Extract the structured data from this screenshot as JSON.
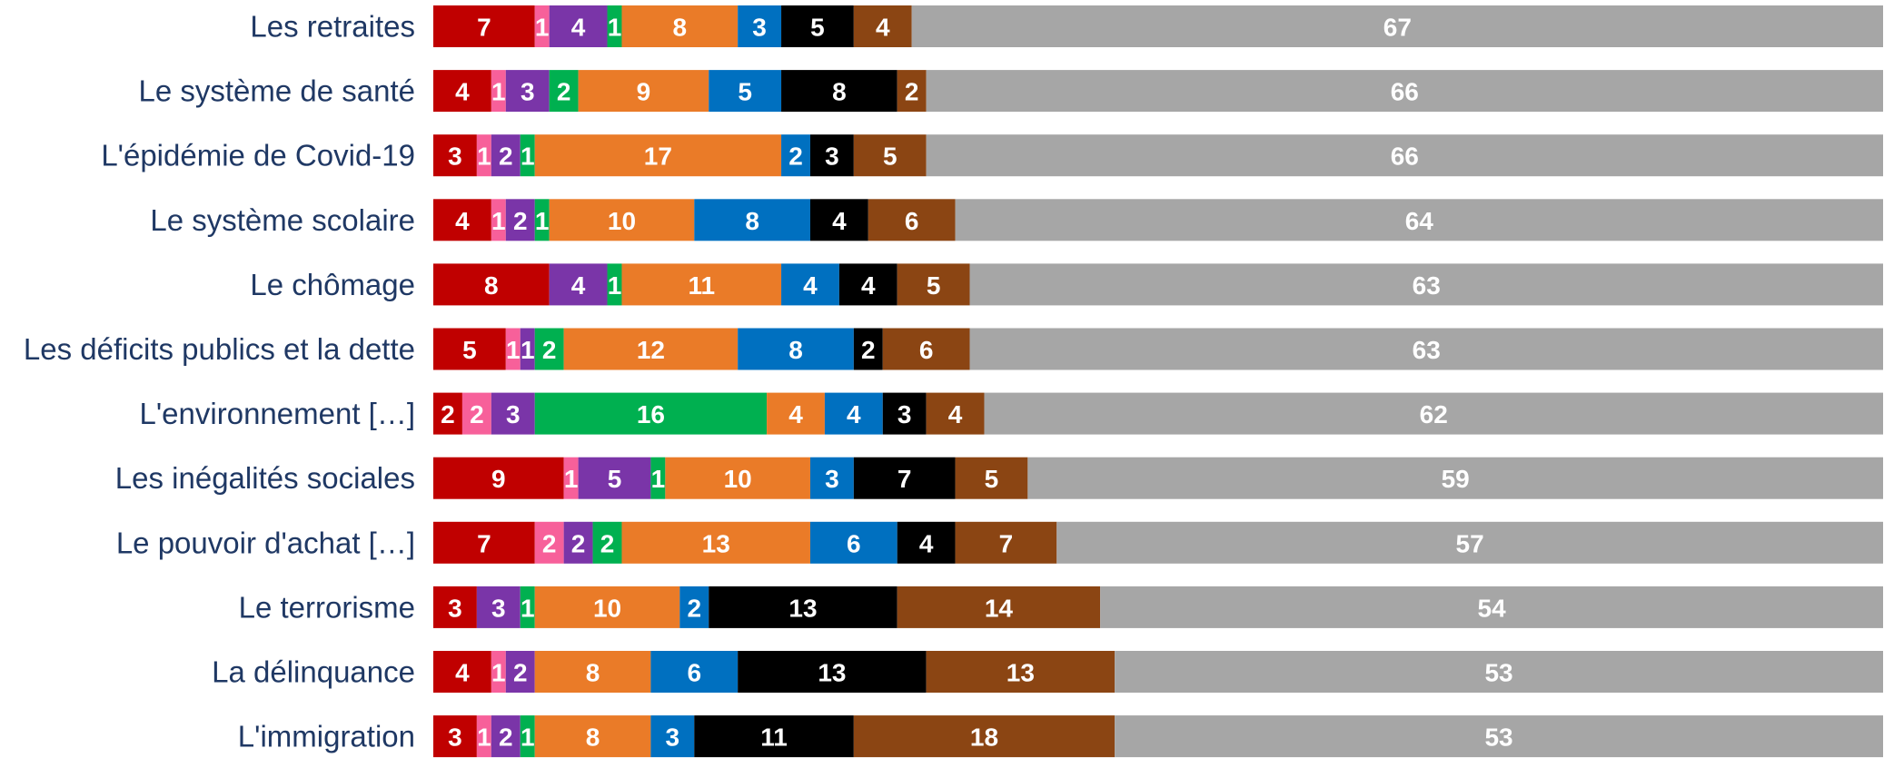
{
  "chart_data": {
    "type": "stacked-bar-horizontal",
    "categories": [
      "Les retraites",
      "Le système de santé",
      "L'épidémie de Covid-19",
      "Le système scolaire",
      "Le chômage",
      "Les déficits publics et la dette",
      "L'environnement […]",
      "Les inégalités sociales",
      "Le pouvoir d'achat […]",
      "Le terrorisme",
      "La délinquance",
      "L'immigration"
    ],
    "series": [
      {
        "color": "#c00000",
        "values": [
          7,
          4,
          3,
          4,
          8,
          5,
          2,
          9,
          7,
          3,
          4,
          3
        ]
      },
      {
        "color": "#f7609a",
        "values": [
          1,
          1,
          1,
          1,
          null,
          1,
          2,
          1,
          2,
          null,
          1,
          1
        ]
      },
      {
        "color": "#7a35a8",
        "values": [
          4,
          3,
          2,
          2,
          4,
          1,
          3,
          5,
          2,
          3,
          2,
          2
        ]
      },
      {
        "color": "#00b050",
        "values": [
          1,
          2,
          1,
          1,
          1,
          2,
          16,
          1,
          2,
          1,
          null,
          1
        ]
      },
      {
        "color": "#ea7b28",
        "values": [
          8,
          9,
          17,
          10,
          11,
          12,
          4,
          10,
          13,
          10,
          8,
          8
        ]
      },
      {
        "color": "#0070c0",
        "values": [
          3,
          5,
          2,
          8,
          4,
          8,
          4,
          3,
          6,
          2,
          6,
          3
        ]
      },
      {
        "color": "#000000",
        "values": [
          5,
          8,
          3,
          4,
          4,
          2,
          3,
          7,
          4,
          13,
          13,
          11
        ]
      },
      {
        "color": "#8b4513",
        "values": [
          4,
          2,
          5,
          6,
          5,
          6,
          4,
          5,
          7,
          14,
          13,
          18
        ]
      },
      {
        "color": "#a6a6a6",
        "values": [
          67,
          66,
          66,
          64,
          63,
          63,
          62,
          59,
          57,
          54,
          53,
          53
        ]
      }
    ]
  }
}
